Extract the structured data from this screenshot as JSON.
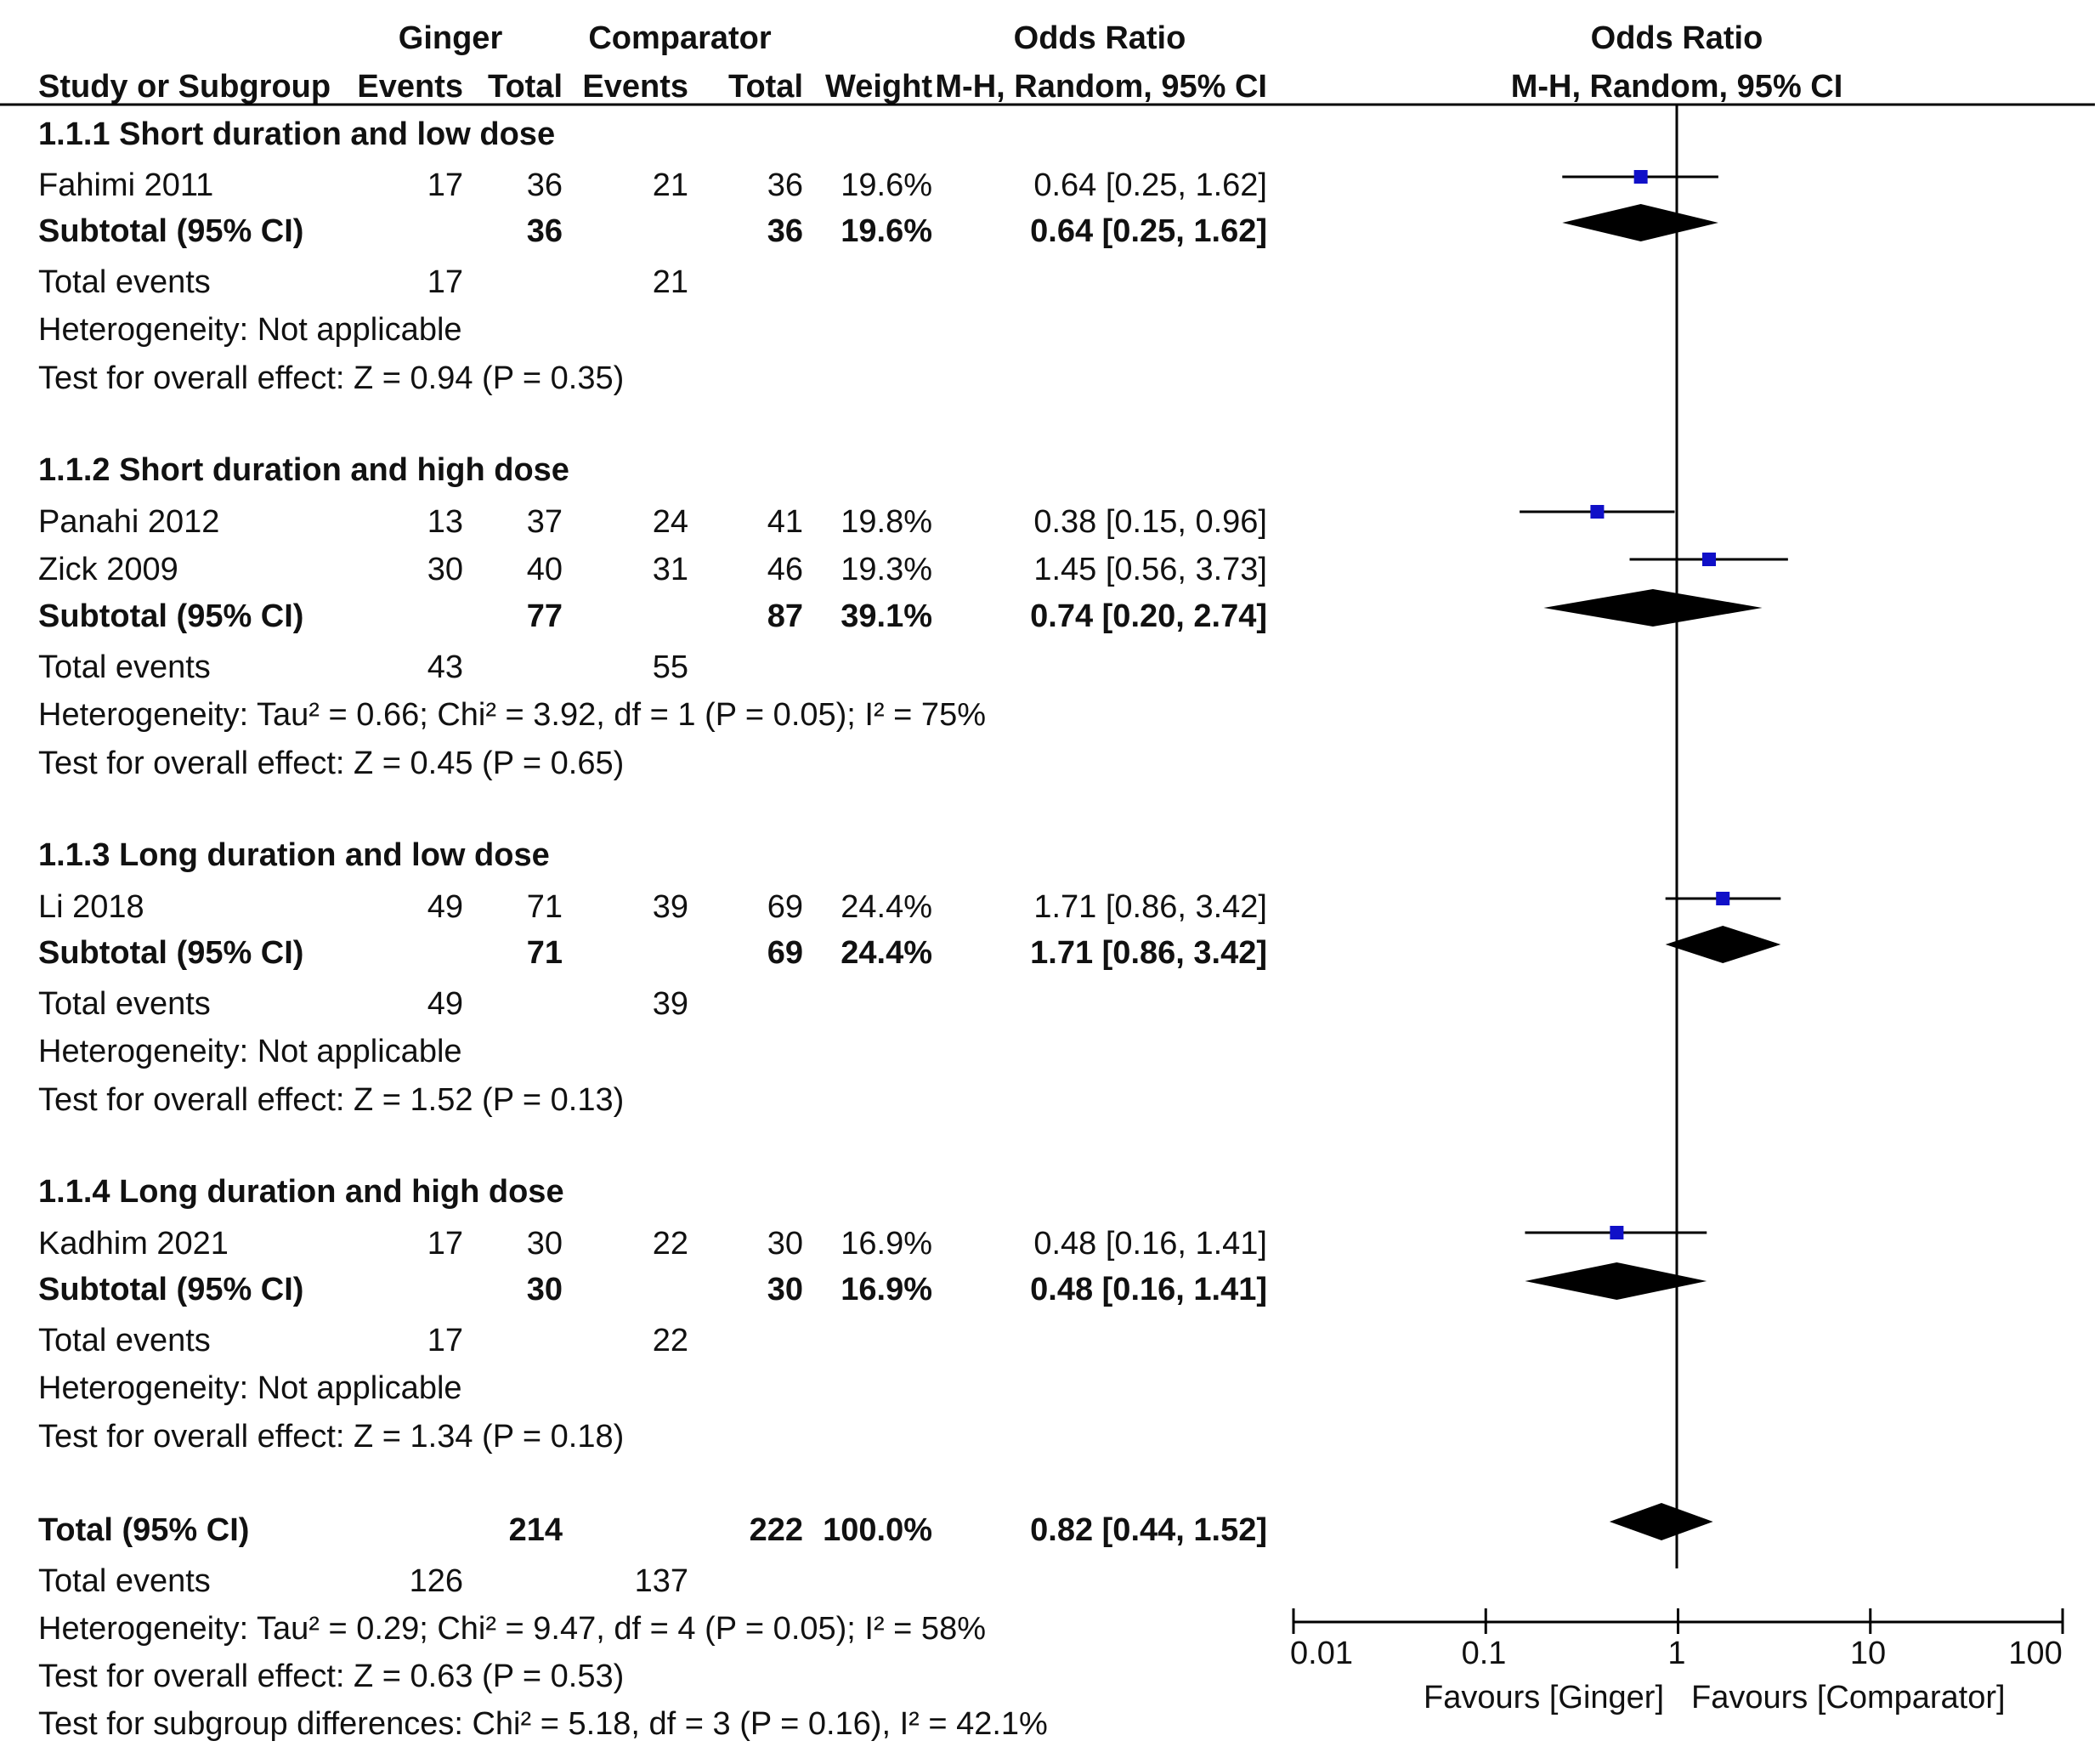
{
  "header": {
    "ginger": "Ginger",
    "comparator": "Comparator",
    "odds_ratio": "Odds Ratio",
    "odds_ratio_plot": "Odds Ratio",
    "study": "Study or Subgroup",
    "events_g": "Events",
    "total_g": "Total",
    "events_c": "Events",
    "total_c": "Total",
    "weight": "Weight",
    "method": "M-H, Random, 95% CI",
    "method_plot": "M-H, Random, 95% CI"
  },
  "groups": [
    {
      "title": "1.1.1 Short duration and low dose",
      "studies": [
        {
          "name": "Fahimi 2011",
          "ev_g": "17",
          "tot_g": "36",
          "ev_c": "21",
          "tot_c": "36",
          "weight": "19.6%",
          "ci": "0.64 [0.25, 1.62]"
        }
      ],
      "subtotal": {
        "label": "Subtotal (95% CI)",
        "tot_g": "36",
        "tot_c": "36",
        "weight": "19.6%",
        "ci": "0.64 [0.25, 1.62]"
      },
      "total_events": {
        "label": "Total events",
        "g": "17",
        "c": "21"
      },
      "heterogeneity": "Heterogeneity: Not applicable",
      "overall": "Test for overall effect: Z = 0.94 (P = 0.35)"
    },
    {
      "title": "1.1.2 Short duration and high dose",
      "studies": [
        {
          "name": "Panahi 2012",
          "ev_g": "13",
          "tot_g": "37",
          "ev_c": "24",
          "tot_c": "41",
          "weight": "19.8%",
          "ci": "0.38 [0.15, 0.96]"
        },
        {
          "name": "Zick 2009",
          "ev_g": "30",
          "tot_g": "40",
          "ev_c": "31",
          "tot_c": "46",
          "weight": "19.3%",
          "ci": "1.45 [0.56, 3.73]"
        }
      ],
      "subtotal": {
        "label": "Subtotal (95% CI)",
        "tot_g": "77",
        "tot_c": "87",
        "weight": "39.1%",
        "ci": "0.74 [0.20, 2.74]"
      },
      "total_events": {
        "label": "Total events",
        "g": "43",
        "c": "55"
      },
      "heterogeneity": "Heterogeneity: Tau² = 0.66; Chi² = 3.92, df = 1 (P = 0.05); I² = 75%",
      "overall": "Test for overall effect: Z = 0.45 (P = 0.65)"
    },
    {
      "title": "1.1.3 Long duration and low dose",
      "studies": [
        {
          "name": "Li 2018",
          "ev_g": "49",
          "tot_g": "71",
          "ev_c": "39",
          "tot_c": "69",
          "weight": "24.4%",
          "ci": "1.71 [0.86, 3.42]"
        }
      ],
      "subtotal": {
        "label": "Subtotal (95% CI)",
        "tot_g": "71",
        "tot_c": "69",
        "weight": "24.4%",
        "ci": "1.71 [0.86, 3.42]"
      },
      "total_events": {
        "label": "Total events",
        "g": "49",
        "c": "39"
      },
      "heterogeneity": "Heterogeneity: Not applicable",
      "overall": "Test for overall effect: Z = 1.52 (P = 0.13)"
    },
    {
      "title": "1.1.4 Long duration and high dose",
      "studies": [
        {
          "name": "Kadhim 2021",
          "ev_g": "17",
          "tot_g": "30",
          "ev_c": "22",
          "tot_c": "30",
          "weight": "16.9%",
          "ci": "0.48 [0.16, 1.41]"
        }
      ],
      "subtotal": {
        "label": "Subtotal (95% CI)",
        "tot_g": "30",
        "tot_c": "30",
        "weight": "16.9%",
        "ci": "0.48 [0.16, 1.41]"
      },
      "total_events": {
        "label": "Total events",
        "g": "17",
        "c": "22"
      },
      "heterogeneity": "Heterogeneity: Not applicable",
      "overall": "Test for overall effect: Z = 1.34 (P = 0.18)"
    }
  ],
  "total": {
    "label": "Total (95% CI)",
    "tot_g": "214",
    "tot_c": "222",
    "weight": "100.0%",
    "ci": "0.82 [0.44, 1.52]"
  },
  "total_events": {
    "label": "Total events",
    "g": "126",
    "c": "137"
  },
  "total_heterogeneity": "Heterogeneity: Tau² = 0.29; Chi² = 9.47, df = 4 (P = 0.05); I² = 58%",
  "total_overall": "Test for overall effect: Z = 0.63 (P = 0.53)",
  "subgroup_diff": "Test for subgroup differences: Chi² = 5.18, df = 3 (P = 0.16), I² = 42.1%",
  "axis": {
    "ticks": [
      "0.01",
      "0.1",
      "1",
      "10",
      "100"
    ],
    "favours_left": "Favours [Ginger]",
    "favours_right": "Favours [Comparator]"
  },
  "chart_data": {
    "type": "scatter",
    "title": "Odds Ratio M-H, Random, 95% CI",
    "scale": "log10",
    "xlim": [
      0.01,
      100
    ],
    "reference_line": 1,
    "xlabel_left": "Favours [Ginger]",
    "xlabel_right": "Favours [Comparator]",
    "colors": {
      "study_marker": "#1010c8",
      "diamond": "#000000",
      "line": "#000000"
    },
    "studies": [
      {
        "name": "Fahimi 2011",
        "or": 0.64,
        "lo": 0.25,
        "hi": 1.62,
        "weight": 19.6
      },
      {
        "name": "Panahi 2012",
        "or": 0.38,
        "lo": 0.15,
        "hi": 0.96,
        "weight": 19.8
      },
      {
        "name": "Zick 2009",
        "or": 1.45,
        "lo": 0.56,
        "hi": 3.73,
        "weight": 19.3
      },
      {
        "name": "Li 2018",
        "or": 1.71,
        "lo": 0.86,
        "hi": 3.42,
        "weight": 24.4
      },
      {
        "name": "Kadhim 2021",
        "or": 0.48,
        "lo": 0.16,
        "hi": 1.41,
        "weight": 16.9
      }
    ],
    "subtotals": [
      {
        "name": "1.1.1 Subtotal",
        "or": 0.64,
        "lo": 0.25,
        "hi": 1.62
      },
      {
        "name": "1.1.2 Subtotal",
        "or": 0.74,
        "lo": 0.2,
        "hi": 2.74
      },
      {
        "name": "1.1.3 Subtotal",
        "or": 1.71,
        "lo": 0.86,
        "hi": 3.42
      },
      {
        "name": "1.1.4 Subtotal",
        "or": 0.48,
        "lo": 0.16,
        "hi": 1.41
      },
      {
        "name": "Total",
        "or": 0.82,
        "lo": 0.44,
        "hi": 1.52
      }
    ]
  }
}
